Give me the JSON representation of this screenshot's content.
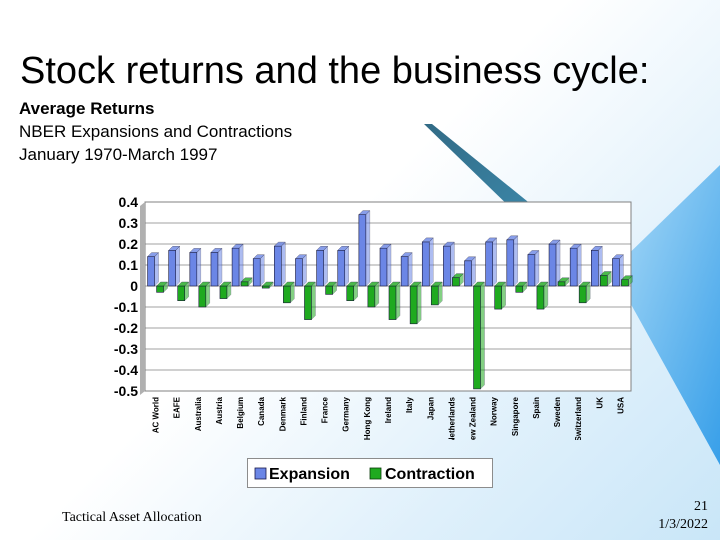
{
  "slide": {
    "title": "Stock returns and the business cycle:",
    "subtitle_lines": [
      "Average Returns",
      "NBER Expansions and Contractions",
      "January 1970-March 1997"
    ],
    "footer_left": "Tactical Asset Allocation",
    "page_number": "21",
    "date": "1/3/2022"
  },
  "chart_data": {
    "type": "bar",
    "title": "",
    "xlabel": "",
    "ylabel": "",
    "ylim": [
      -0.5,
      0.4
    ],
    "yticks": [
      "0.4",
      "0.3",
      "0.2",
      "0.1",
      "0",
      "-0.1",
      "-0.2",
      "-0.3",
      "-0.4",
      "-0.5"
    ],
    "grid": true,
    "legend_position": "bottom",
    "categories": [
      "AC World",
      "EAFE",
      "Australia",
      "Austria",
      "Belgium",
      "Canada",
      "Denmark",
      "Finland",
      "France",
      "Germany",
      "Hong Kong",
      "Ireland",
      "Italy",
      "Japan",
      "Netherlands",
      "New Zealand",
      "Norway",
      "Singapore",
      "Spain",
      "Sweden",
      "Switzerland",
      "UK",
      "USA"
    ],
    "series": [
      {
        "name": "Expansion",
        "color": "#6b86e6",
        "values": [
          0.14,
          0.17,
          0.16,
          0.16,
          0.18,
          0.13,
          0.19,
          0.13,
          0.17,
          0.17,
          0.34,
          0.18,
          0.14,
          0.21,
          0.19,
          0.12,
          0.21,
          0.22,
          0.15,
          0.2,
          0.18,
          0.17,
          0.13
        ]
      },
      {
        "name": "Contraction",
        "color": "#1faa1f",
        "values": [
          -0.03,
          -0.07,
          -0.1,
          -0.06,
          0.02,
          -0.01,
          -0.08,
          -0.16,
          -0.04,
          -0.07,
          -0.1,
          -0.16,
          -0.18,
          -0.09,
          0.04,
          -0.49,
          -0.11,
          -0.03,
          -0.11,
          0.02,
          -0.08,
          0.05,
          0.03
        ]
      }
    ]
  }
}
